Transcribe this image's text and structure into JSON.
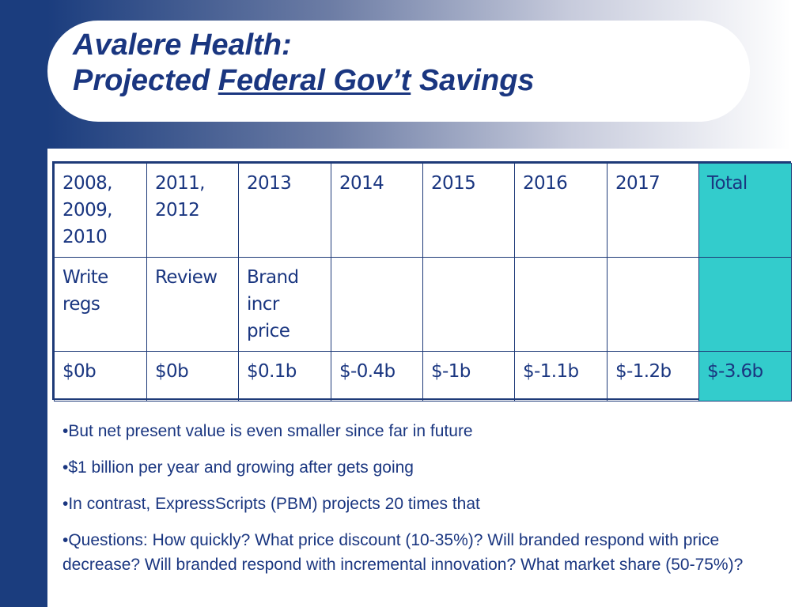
{
  "title": {
    "line1": "Avalere Health:",
    "line2_pre": "Projected ",
    "line2_underlined": "Federal Gov’t",
    "line2_post": " Savings"
  },
  "table": {
    "headers": [
      "2008, 2009, 2010",
      "2011, 2012",
      "2013",
      "2014",
      "2015",
      "2016",
      "2017",
      "Total"
    ],
    "actions": [
      "Write regs",
      "Review",
      "Brand incr price",
      "",
      "",
      "",
      "",
      ""
    ],
    "savings": [
      "$0b",
      "$0b",
      "$0.1b",
      "$-0.4b",
      "$-1b",
      "$-1.1b",
      "$-1.2b",
      "$-3.6b"
    ]
  },
  "bullets": [
    "•But net present value is even smaller since far in future",
    "•$1 billion per year and growing after gets going",
    "•In contrast, ExpressScripts (PBM) projects 20 times that",
    "•Questions: How quickly? What price discount (10-35%)? Will branded respond with price decrease? Will branded respond with incremental innovation? What market share (50-75%)?"
  ],
  "colors": {
    "dark_blue": "#1b3d7e",
    "text_blue": "#1a3680",
    "total_column": "#33cccc"
  }
}
